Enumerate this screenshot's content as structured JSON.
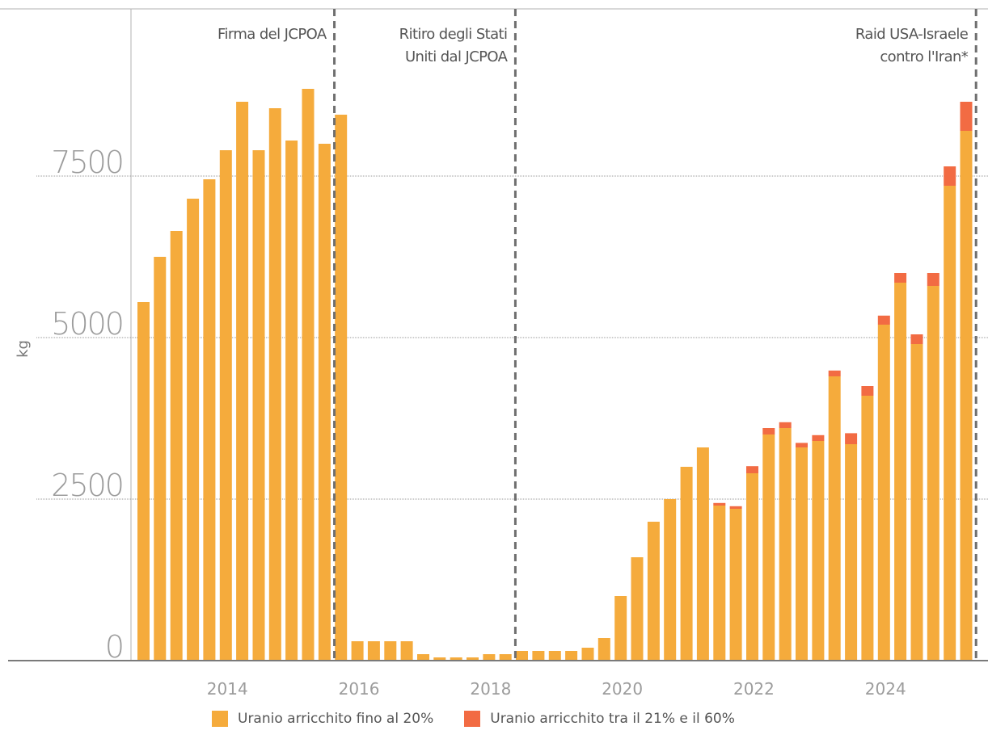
{
  "chart_data": {
    "type": "bar",
    "stacked": true,
    "title": "",
    "xlabel": "",
    "ylabel": "kg",
    "ylim": [
      0,
      10000
    ],
    "y_ticks": [
      "0",
      "2500",
      "5000",
      "7500"
    ],
    "y_tick_values": [
      0,
      2500,
      5000,
      7500
    ],
    "x_ticks": [
      "2014",
      "2016",
      "2018",
      "2020",
      "2022",
      "2024"
    ],
    "x_tick_positions": [
      2014,
      2016,
      2018,
      2020,
      2022,
      2024
    ],
    "grid": "horizontal",
    "legend_placement": "bottom",
    "x": [
      2012.75,
      2013.0,
      2013.25,
      2013.5,
      2013.75,
      2014.0,
      2014.25,
      2014.5,
      2014.75,
      2015.0,
      2015.25,
      2015.5,
      2015.75,
      2016.0,
      2016.25,
      2016.5,
      2016.75,
      2017.0,
      2017.25,
      2017.5,
      2017.75,
      2018.0,
      2018.25,
      2018.5,
      2018.75,
      2019.0,
      2019.25,
      2019.5,
      2019.75,
      2020.0,
      2020.25,
      2020.5,
      2020.75,
      2021.0,
      2021.25,
      2021.5,
      2021.75,
      2022.0,
      2022.25,
      2022.5,
      2022.75,
      2023.0,
      2023.25,
      2023.5,
      2023.75,
      2024.0,
      2024.25,
      2024.5,
      2024.75,
      2025.0,
      2025.25
    ],
    "series": [
      {
        "name": "Uranio arricchito fino al 20%",
        "color": "#f5ab3c",
        "values": [
          5550,
          6250,
          6650,
          7150,
          7450,
          7900,
          8650,
          7900,
          8550,
          8050,
          8850,
          8000,
          8450,
          300,
          300,
          300,
          300,
          100,
          50,
          50,
          50,
          100,
          100,
          150,
          150,
          150,
          150,
          200,
          350,
          1000,
          1600,
          2150,
          2500,
          3000,
          3300,
          2400,
          2350,
          2900,
          3500,
          3600,
          3300,
          3400,
          4400,
          3350,
          4100,
          5200,
          5850,
          4900,
          5800,
          7350,
          8200
        ]
      },
      {
        "name": "Uranio arricchito tra il 21% e il 60%",
        "color": "#f26b43",
        "values": [
          0,
          0,
          0,
          0,
          0,
          0,
          0,
          0,
          0,
          0,
          0,
          0,
          0,
          0,
          0,
          0,
          0,
          0,
          0,
          0,
          0,
          0,
          0,
          0,
          0,
          0,
          0,
          0,
          0,
          0,
          0,
          0,
          0,
          0,
          0,
          40,
          40,
          110,
          100,
          90,
          70,
          90,
          90,
          170,
          150,
          140,
          150,
          150,
          200,
          300,
          450
        ]
      }
    ],
    "events": [
      {
        "x": 2015.65,
        "label_lines": [
          "Firma del JCPOA"
        ],
        "label_side": "left"
      },
      {
        "x": 2018.4,
        "label_lines": [
          "Ritiro degli Stati",
          "Uniti dal JCPOA"
        ],
        "label_side": "left"
      },
      {
        "x": 2025.4,
        "label_lines": [
          "Raid USA-Israele",
          "contro l'Iran*"
        ],
        "label_side": "left"
      }
    ]
  }
}
